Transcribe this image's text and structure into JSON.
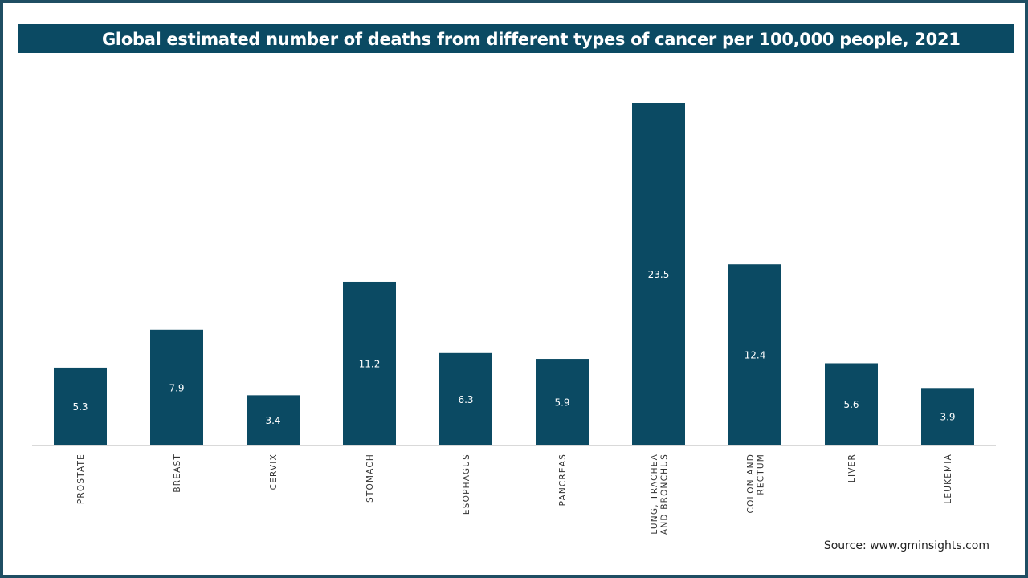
{
  "chart_data": {
    "type": "bar",
    "title": "Global estimated number of deaths from different types of cancer per 100,000 people, 2021",
    "categories": [
      [
        "PROSTATE"
      ],
      [
        "BREAST"
      ],
      [
        "CERVIX"
      ],
      [
        "STOMACH"
      ],
      [
        "ESOPHAGUS"
      ],
      [
        "PANCREAS"
      ],
      [
        "LUNG, TRACHEA",
        "AND BRONCHUS"
      ],
      [
        "COLON AND",
        "RECTUM"
      ],
      [
        "LIVER"
      ],
      [
        "LEUKEMIA"
      ]
    ],
    "values": [
      5.3,
      7.9,
      3.4,
      11.2,
      6.3,
      5.9,
      23.5,
      12.4,
      5.6,
      3.9
    ],
    "ylim": [
      0,
      23.5
    ],
    "grid": false,
    "legend": "none",
    "bar_color": "#0b4a63",
    "label_color": "#ffffff"
  },
  "source": "Source: www.gminsights.com"
}
